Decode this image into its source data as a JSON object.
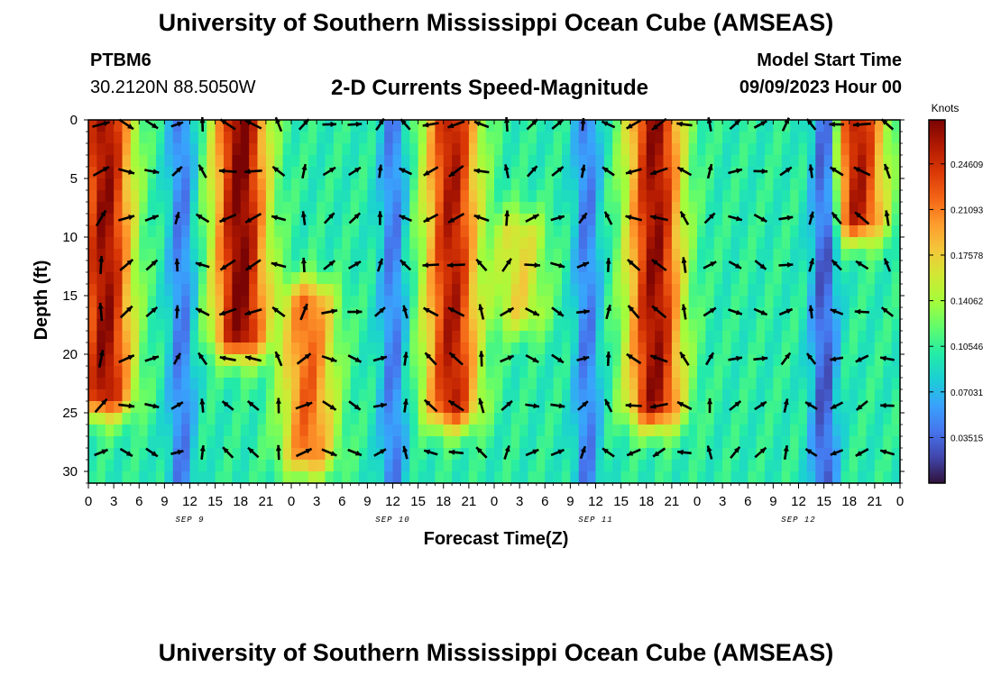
{
  "header": {
    "title": "University of Southern Mississippi Ocean Cube (AMSEAS)",
    "station": "PTBM6",
    "coords": "30.2120N  88.5050W",
    "subtitle": "2-D Currents Speed-Magnitude",
    "model_start_label": "Model Start Time",
    "model_start_value": "09/09/2023 Hour 00"
  },
  "footer": {
    "title": "University of Southern Mississippi Ocean Cube (AMSEAS)"
  },
  "colors": {
    "palette": [
      "#30123b",
      "#4145ab",
      "#4675ed",
      "#39a2fc",
      "#1bcfd4",
      "#24eca6",
      "#61fc6c",
      "#a4fc3b",
      "#d1e834",
      "#f3c63a",
      "#fe9b2d",
      "#f36315",
      "#d93806",
      "#b11901",
      "#7a0403"
    ]
  },
  "chart_data": {
    "type": "heatmap",
    "title": "2-D Currents Speed-Magnitude",
    "xlabel": "Forecast Time(Z)",
    "ylabel": "Depth (ft)",
    "x_tick_labels": [
      "0",
      "3",
      "6",
      "9",
      "12",
      "15",
      "18",
      "21",
      "0",
      "3",
      "6",
      "9",
      "12",
      "15",
      "18",
      "21",
      "0",
      "3",
      "6",
      "9",
      "12",
      "15",
      "18",
      "21",
      "0",
      "3",
      "6",
      "9",
      "12",
      "15",
      "18",
      "21",
      "0"
    ],
    "x_range_hours": [
      0,
      96
    ],
    "day_labels": [
      {
        "label": "SEP 9",
        "hour": 12
      },
      {
        "label": "SEP 10",
        "hour": 36
      },
      {
        "label": "SEP 11",
        "hour": 60
      },
      {
        "label": "SEP 12",
        "hour": 84
      }
    ],
    "y_ticks": [
      0,
      5,
      10,
      15,
      20,
      25,
      30
    ],
    "y_range_ft": [
      0,
      31
    ],
    "colorbar": {
      "unit": "Knots",
      "ticks": [
        "0.03515",
        "0.07031",
        "0.10546",
        "0.14062",
        "0.17578",
        "0.21093",
        "0.24609"
      ],
      "range": [
        0.0,
        0.28
      ]
    },
    "speed_peaks": [
      {
        "hour": 2,
        "depth_top": 0,
        "depth_bottom": 23,
        "value": 0.27
      },
      {
        "hour": 18,
        "depth_top": 0,
        "depth_bottom": 18,
        "value": 0.28
      },
      {
        "hour": 26,
        "depth_top": 16,
        "depth_bottom": 28,
        "value": 0.22
      },
      {
        "hour": 43,
        "depth_top": 0,
        "depth_bottom": 24,
        "value": 0.26
      },
      {
        "hour": 51,
        "depth_top": 10,
        "depth_bottom": 16,
        "value": 0.17
      },
      {
        "hour": 67,
        "depth_top": 0,
        "depth_bottom": 24,
        "value": 0.27
      },
      {
        "hour": 91,
        "depth_top": 0,
        "depth_bottom": 8,
        "value": 0.26
      }
    ],
    "speed_lows": [
      {
        "hour": 11,
        "value": 0.03
      },
      {
        "hour": 36,
        "value": 0.03
      },
      {
        "hour": 59,
        "value": 0.03
      },
      {
        "hour": 87,
        "value": 0.01
      }
    ]
  }
}
